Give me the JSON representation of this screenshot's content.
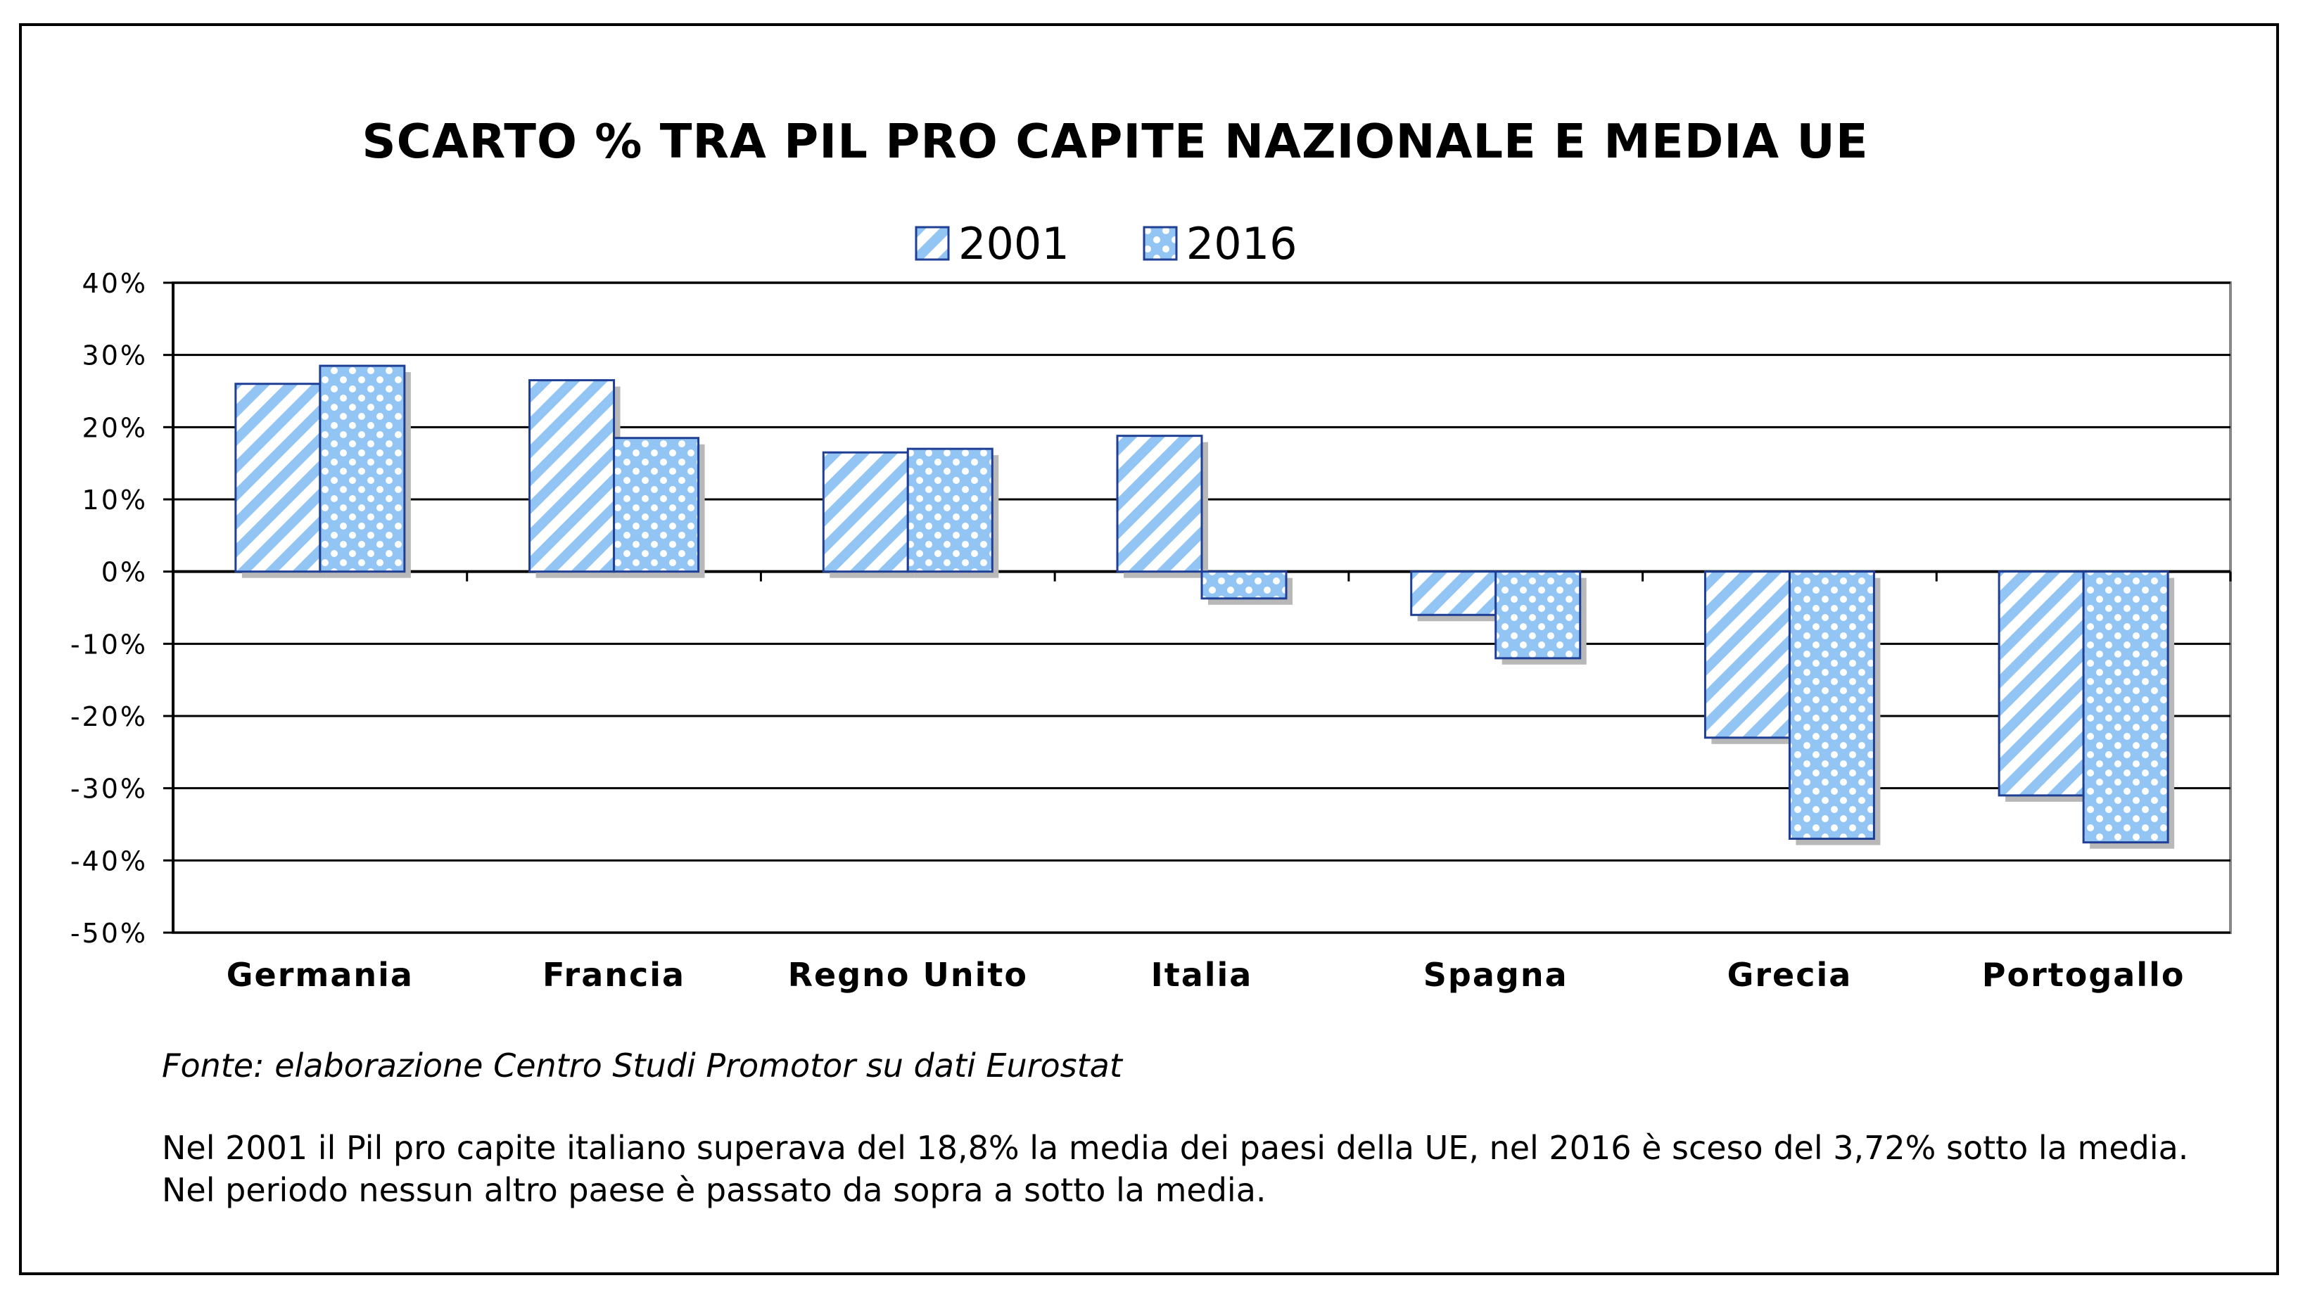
{
  "title": "SCARTO % TRA PIL PRO CAPITE NAZIONALE E MEDIA UE",
  "source": "Fonte: elaborazione Centro Studi Promotor su dati Eurostat",
  "caption": "Nel 2001 il Pil pro capite italiano superava del 18,8% la media dei paesi della UE, nel 2016 è sceso del 3,72% sotto la media. Nel periodo nessun altro paese è passato da sopra a sotto la media.",
  "colors": {
    "fill": "#93c5f4",
    "stroke": "#1f3f94",
    "grid": "#000000",
    "background": "#ffffff"
  },
  "chart_data": {
    "type": "bar",
    "title": "SCARTO % TRA PIL PRO CAPITE NAZIONALE E MEDIA UE",
    "xlabel": "",
    "ylabel": "",
    "categories": [
      "Germania",
      "Francia",
      "Regno Unito",
      "Italia",
      "Spagna",
      "Grecia",
      "Portogallo"
    ],
    "series": [
      {
        "name": "2001",
        "pattern": "diagonal-stripes",
        "values": [
          26,
          26.5,
          16.5,
          18.8,
          -6,
          -23,
          -31
        ]
      },
      {
        "name": "2016",
        "pattern": "dots",
        "values": [
          28.5,
          18.5,
          17,
          -3.72,
          -12,
          -37,
          -37.5
        ]
      }
    ],
    "ylim": [
      -50,
      40
    ],
    "yticks": [
      40,
      30,
      20,
      10,
      0,
      -10,
      -20,
      -30,
      -40,
      -50
    ],
    "ytick_labels": [
      "40%",
      "30%",
      "20%",
      "10%",
      "0%",
      "-10%",
      "-20%",
      "-30%",
      "-40%",
      "-50%"
    ],
    "grid": true,
    "legend": "top-center"
  }
}
